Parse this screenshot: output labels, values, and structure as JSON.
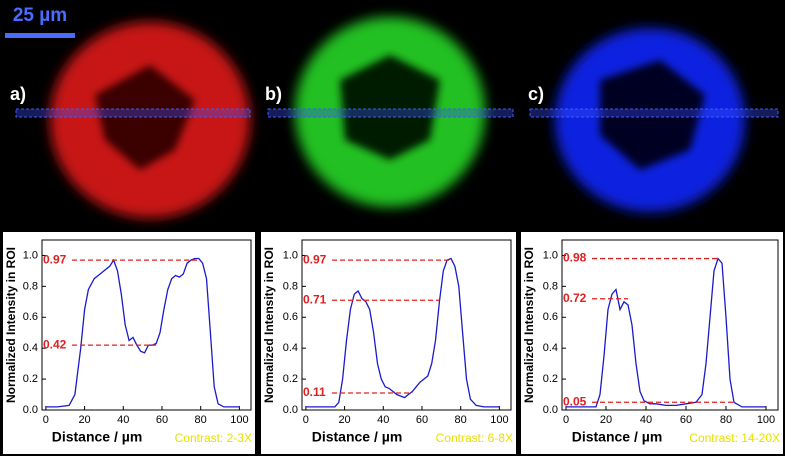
{
  "scale_bar": "25 µm",
  "panels": [
    "a)",
    "b)",
    "c)"
  ],
  "chart_data": [
    {
      "type": "line",
      "ylabel": "Normalized Intensity in ROI",
      "xlabel": "Distance / µm",
      "annotation": "Contrast: 2-3X",
      "xlim": [
        -2,
        106
      ],
      "ylim": [
        0,
        1.1
      ],
      "xticks": [
        0,
        20,
        40,
        60,
        80,
        100
      ],
      "yticks": [
        {
          "value": 0,
          "label": "0.0"
        },
        0.2,
        0.4,
        0.6,
        0.8,
        {
          "value": 1,
          "label": "1.0"
        }
      ],
      "reference_lines": [
        0.97,
        0.42
      ],
      "reference_color": "#e02020",
      "color": "#1a1acc",
      "x": [
        0,
        6,
        12,
        15,
        18,
        20,
        22,
        25,
        28,
        30,
        33,
        35,
        37,
        39,
        41,
        43,
        45,
        47,
        49,
        51,
        53,
        55,
        57,
        59,
        61,
        63,
        65,
        67,
        69,
        71,
        73,
        75,
        77,
        79,
        81,
        83,
        85,
        87,
        89,
        92,
        100
      ],
      "values": [
        0.02,
        0.02,
        0.03,
        0.1,
        0.4,
        0.65,
        0.78,
        0.85,
        0.88,
        0.9,
        0.93,
        0.97,
        0.9,
        0.75,
        0.55,
        0.45,
        0.47,
        0.42,
        0.38,
        0.37,
        0.42,
        0.42,
        0.43,
        0.5,
        0.65,
        0.78,
        0.85,
        0.87,
        0.86,
        0.88,
        0.95,
        0.97,
        0.98,
        0.98,
        0.95,
        0.85,
        0.5,
        0.15,
        0.04,
        0.02,
        0.02
      ]
    },
    {
      "type": "line",
      "ylabel": "Normalized Intensity in ROI",
      "xlabel": "Distance / µm",
      "annotation": "Contrast: 6-8X",
      "xlim": [
        -2,
        106
      ],
      "ylim": [
        0,
        1.1
      ],
      "xticks": [
        0,
        20,
        40,
        60,
        80,
        100
      ],
      "yticks": [
        {
          "value": 0,
          "label": "0.0"
        },
        0.2,
        0.4,
        0.6,
        0.8,
        {
          "value": 1,
          "label": "1.0"
        }
      ],
      "reference_lines": [
        0.97,
        0.71,
        0.11
      ],
      "reference_color": "#e02020",
      "color": "#1a1acc",
      "x": [
        0,
        8,
        15,
        17,
        19,
        21,
        23,
        25,
        27,
        29,
        31,
        33,
        35,
        37,
        39,
        41,
        43,
        45,
        47,
        49,
        51,
        53,
        55,
        57,
        59,
        61,
        63,
        65,
        67,
        69,
        71,
        73,
        75,
        77,
        79,
        81,
        83,
        85,
        88,
        92,
        100
      ],
      "values": [
        0.02,
        0.02,
        0.02,
        0.05,
        0.2,
        0.45,
        0.65,
        0.75,
        0.77,
        0.72,
        0.7,
        0.65,
        0.5,
        0.3,
        0.2,
        0.15,
        0.14,
        0.12,
        0.1,
        0.09,
        0.08,
        0.1,
        0.12,
        0.15,
        0.18,
        0.2,
        0.22,
        0.3,
        0.45,
        0.7,
        0.9,
        0.97,
        0.98,
        0.93,
        0.8,
        0.5,
        0.2,
        0.07,
        0.03,
        0.02,
        0.02
      ]
    },
    {
      "type": "line",
      "ylabel": "Normalized Intensity in ROI",
      "xlabel": "Distance / µm",
      "annotation": "Contrast: 14-20X",
      "xlim": [
        -2,
        106
      ],
      "ylim": [
        0,
        1.1
      ],
      "xticks": [
        0,
        20,
        40,
        60,
        80,
        100
      ],
      "yticks": [
        {
          "value": 0,
          "label": "0.0"
        },
        0.2,
        0.4,
        0.6,
        0.8,
        {
          "value": 1,
          "label": "1.0"
        }
      ],
      "reference_lines": [
        0.98,
        0.72,
        0.05
      ],
      "reference_color": "#e02020",
      "color": "#1a1acc",
      "x": [
        0,
        8,
        15,
        17,
        19,
        21,
        23,
        25,
        27,
        29,
        31,
        33,
        35,
        37,
        39,
        42,
        45,
        50,
        55,
        60,
        65,
        68,
        70,
        72,
        74,
        76,
        78,
        80,
        82,
        84,
        88,
        100
      ],
      "values": [
        0.02,
        0.02,
        0.02,
        0.1,
        0.35,
        0.65,
        0.75,
        0.78,
        0.65,
        0.7,
        0.68,
        0.55,
        0.3,
        0.12,
        0.06,
        0.04,
        0.04,
        0.03,
        0.03,
        0.04,
        0.05,
        0.1,
        0.3,
        0.6,
        0.9,
        0.98,
        0.95,
        0.6,
        0.2,
        0.05,
        0.02,
        0.02
      ]
    }
  ]
}
